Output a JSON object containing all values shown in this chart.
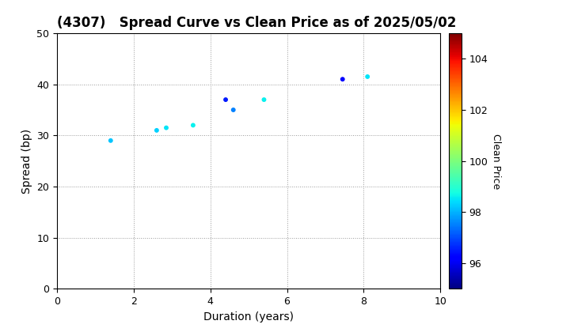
{
  "title": "(4307)   Spread Curve vs Clean Price as of 2025/05/02",
  "xlabel": "Duration (years)",
  "ylabel": "Spread (bp)",
  "colorbar_label": "Clean Price",
  "xlim": [
    0,
    10
  ],
  "ylim": [
    0,
    50
  ],
  "xticks": [
    0,
    2,
    4,
    6,
    8,
    10
  ],
  "yticks": [
    0,
    10,
    20,
    30,
    40,
    50
  ],
  "colorbar_min": 95,
  "colorbar_max": 105,
  "colorbar_ticks": [
    96,
    98,
    100,
    102,
    104
  ],
  "points": [
    {
      "duration": 1.4,
      "spread": 29,
      "clean_price": 98.2
    },
    {
      "duration": 2.6,
      "spread": 31,
      "clean_price": 98.3
    },
    {
      "duration": 2.85,
      "spread": 31.5,
      "clean_price": 98.5
    },
    {
      "duration": 3.55,
      "spread": 32,
      "clean_price": 98.6
    },
    {
      "duration": 4.4,
      "spread": 37,
      "clean_price": 96.5
    },
    {
      "duration": 4.6,
      "spread": 35,
      "clean_price": 97.5
    },
    {
      "duration": 5.4,
      "spread": 37,
      "clean_price": 98.6
    },
    {
      "duration": 7.45,
      "spread": 41,
      "clean_price": 96.2
    },
    {
      "duration": 8.1,
      "spread": 41.5,
      "clean_price": 98.5
    }
  ],
  "marker_size": 18,
  "background_color": "#ffffff",
  "grid_color": "#999999",
  "title_fontsize": 12,
  "axis_fontsize": 10,
  "tick_fontsize": 9,
  "cbar_fontsize": 9
}
